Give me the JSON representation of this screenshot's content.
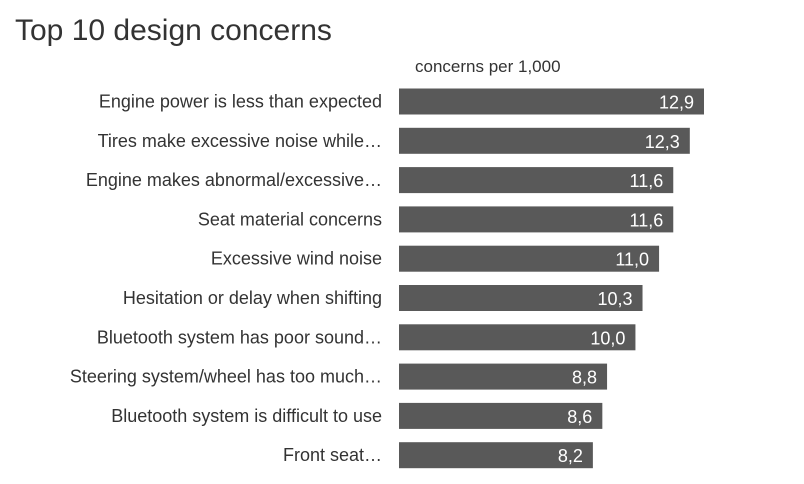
{
  "chart_data": {
    "type": "bar",
    "orientation": "horizontal",
    "title": "Top 10 design concerns",
    "unit_label": "concerns per 1,000",
    "xlabel": "",
    "ylabel": "",
    "xlim": [
      0,
      15
    ],
    "grid": false,
    "legend": "none",
    "bar_color": "#595959",
    "label_color": "#ffffff",
    "text_color": "#333333",
    "categories": [
      "Engine power is less than expected",
      "Tires make excessive noise while…",
      "Engine makes abnormal/excessive…",
      "Seat material concerns",
      "Excessive wind noise",
      "Hesitation or delay when shifting",
      "Bluetooth system has poor sound…",
      "Steering system/wheel has too much…",
      "Bluetooth system is difficult to use",
      "Front seat…"
    ],
    "values": [
      12.9,
      12.3,
      11.6,
      11.6,
      11.0,
      10.3,
      10.0,
      8.8,
      8.6,
      8.2
    ],
    "value_labels": [
      "12,9",
      "12,3",
      "11,6",
      "11,6",
      "11,0",
      "10,3",
      "10,0",
      "8,8",
      "8,6",
      "8,2"
    ]
  }
}
